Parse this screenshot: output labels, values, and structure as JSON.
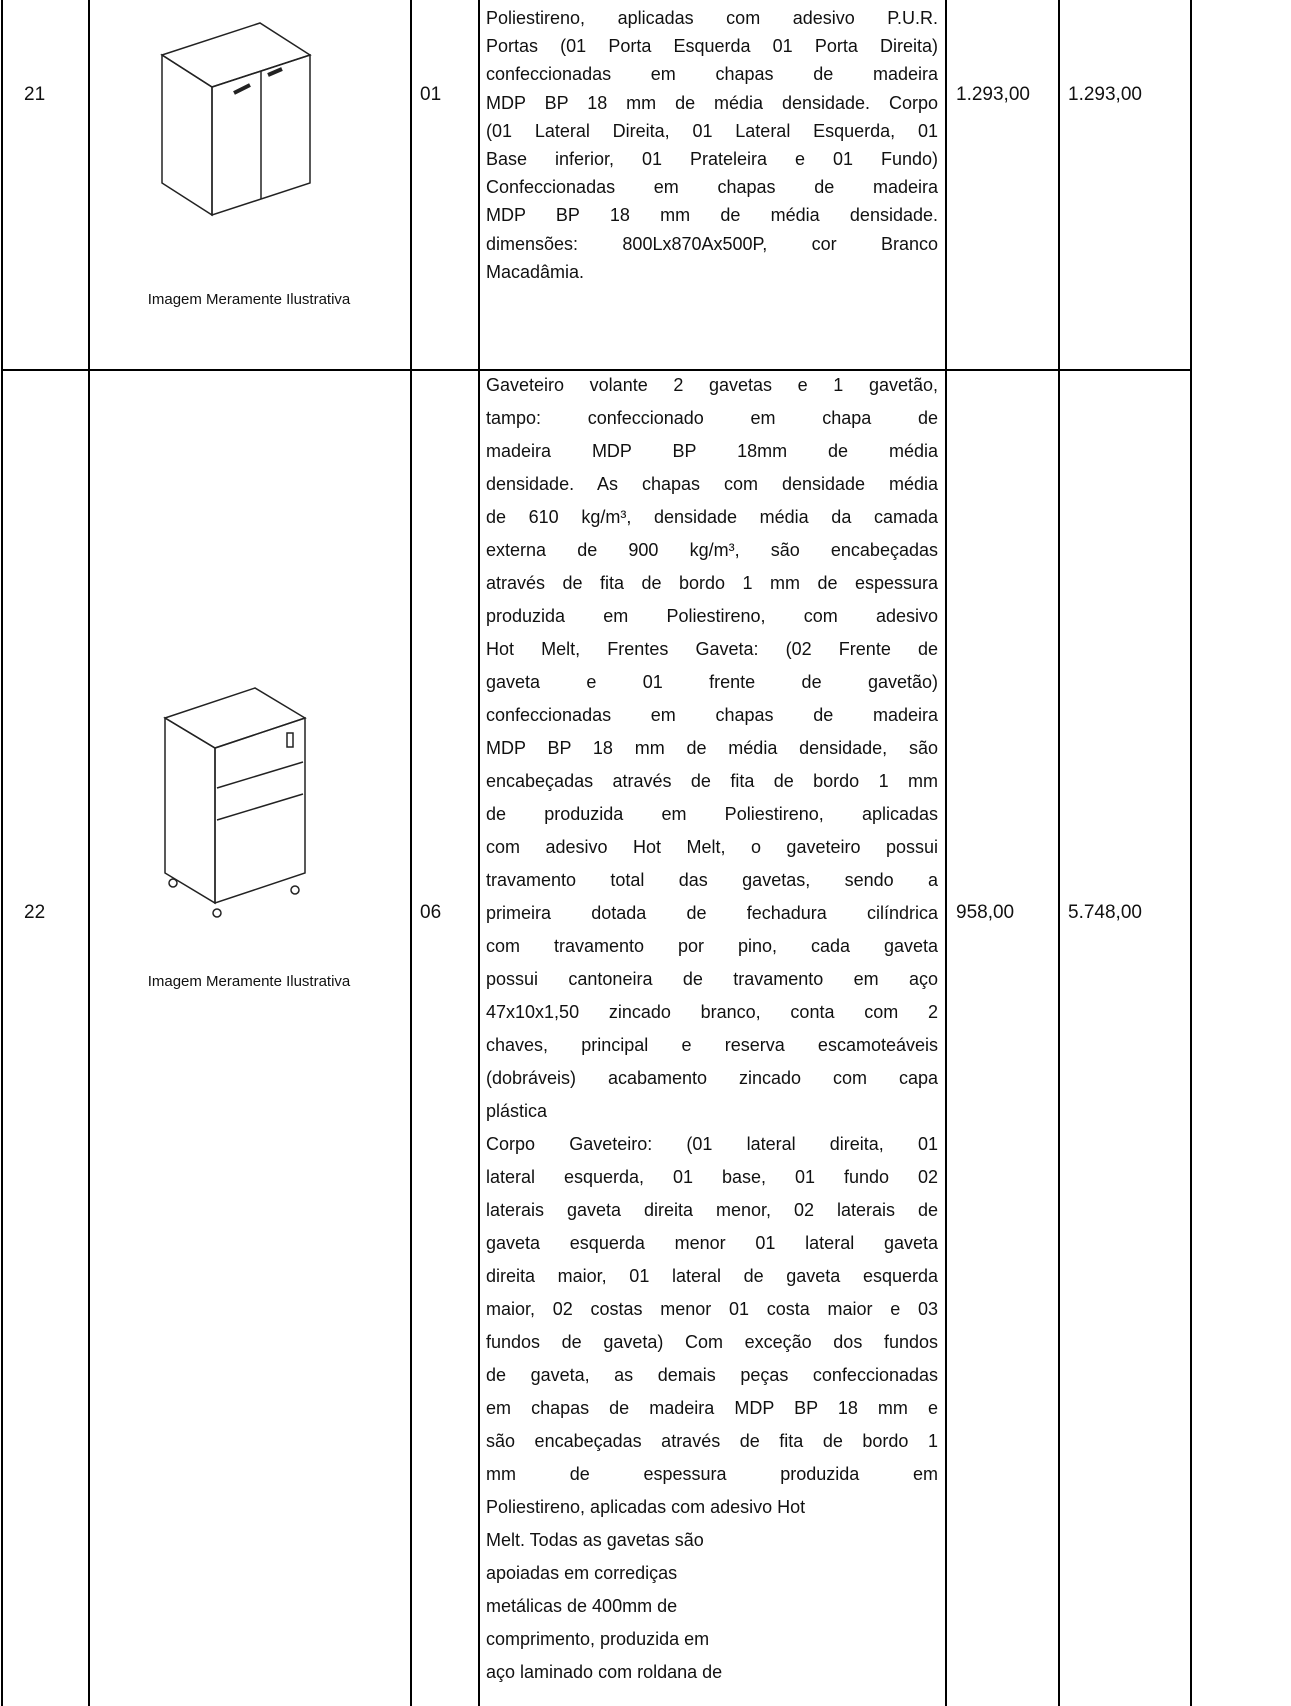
{
  "rows": [
    {
      "item": "21",
      "image_caption": "Imagem Meramente Ilustrativa",
      "quantity": "01",
      "description_lines": [
        "Poliestireno, aplicadas com adesivo P.U.R.",
        "Portas (01 Porta Esquerda 01 Porta Direita)",
        "confeccionadas em chapas de madeira",
        "MDP BP 18 mm de média densidade. Corpo",
        "(01 Lateral Direita, 01 Lateral Esquerda, 01",
        "Base inferior, 01 Prateleira e 01 Fundo)",
        "Confeccionadas em chapas de madeira",
        "MDP BP 18 mm de média densidade.",
        "dimensões: 800Lx870Ax500P,  cor Branco",
        "Macadâmia."
      ],
      "unit_price": "1.293,00",
      "total": "1.293,00"
    },
    {
      "item": "22",
      "image_caption": "Imagem Meramente Ilustrativa",
      "quantity": "06",
      "description_lines": [
        "Gaveteiro volante 2 gavetas e 1 gavetão,",
        "tampo: confeccionado em chapa de",
        "madeira MDP BP 18mm de média",
        "densidade. As chapas com densidade média",
        "de 610 kg/m³, densidade média da camada",
        "externa de 900 kg/m³, são encabeçadas",
        "através de fita de bordo 1 mm de espessura",
        "produzida em Poliestireno, com adesivo",
        "Hot Melt, Frentes Gaveta: (02 Frente de",
        "gaveta e 01 frente de gavetão)",
        "confeccionadas em chapas de madeira",
        "MDP BP 18 mm de média densidade, são",
        "encabeçadas através de fita de bordo 1 mm",
        "de produzida em Poliestireno, aplicadas",
        "com adesivo Hot Melt, o gaveteiro possui",
        "travamento total das gavetas, sendo a",
        "primeira dotada de fechadura cilíndrica",
        "com travamento por pino, cada gaveta",
        "possui cantoneira de travamento em aço",
        "47x10x1,50 zincado branco, conta com 2",
        "chaves, principal e reserva escamoteáveis",
        "(dobráveis) acabamento zincado com capa",
        "plástica",
        "Corpo Gaveteiro: (01 lateral direita, 01",
        "lateral esquerda, 01 base, 01 fundo 02",
        "laterais gaveta direita menor, 02 laterais de",
        "gaveta esquerda menor 01 lateral gaveta",
        "direita maior, 01 lateral de gaveta esquerda",
        "maior, 02 costas menor 01 costa maior e 03",
        "fundos de gaveta) Com exceção dos fundos",
        "de gaveta, as demais peças confeccionadas",
        "em chapas de madeira MDP BP 18 mm e",
        "são encabeçadas através de fita de bordo 1",
        "mm de espessura produzida em",
        "Poliestireno, aplicadas com adesivo Hot",
        "Melt. Todas as gavetas são",
        "apoiadas em corrediças",
        "metálicas de 400mm de",
        "comprimento, produzida em",
        "aço laminado com roldana de"
      ],
      "unit_price": "958,00",
      "total": "5.748,00"
    }
  ]
}
